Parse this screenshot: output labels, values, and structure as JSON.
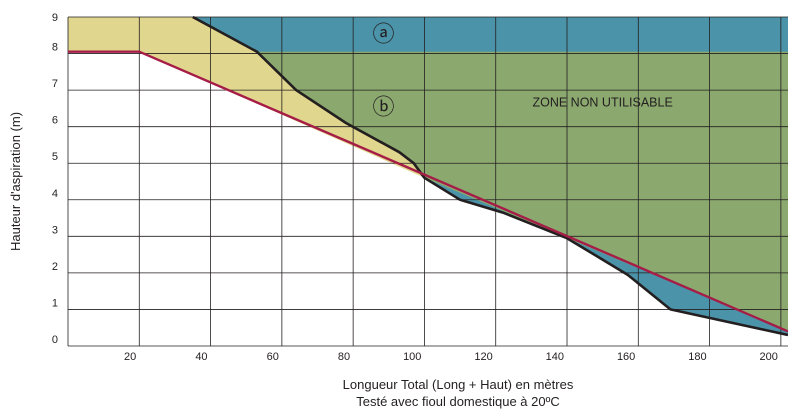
{
  "chart_data": {
    "type": "area",
    "xlabel": "Longueur Total (Long + Haut) en mètres",
    "xlabel_line2": "Testé avec fioul domestique à 20ºC",
    "ylabel": "Hauteur d'aspiration (m)",
    "xlim": [
      0,
      202
    ],
    "ylim": [
      0,
      9
    ],
    "x_ticks": [
      20,
      40,
      60,
      80,
      100,
      120,
      140,
      160,
      180,
      200
    ],
    "y_ticks": [
      0,
      1,
      2,
      3,
      4,
      5,
      6,
      7,
      8,
      9
    ],
    "grid": true,
    "zone_label": "ZONE NON UTILISABLE",
    "annotations": [
      "ⓐ",
      "ⓑ"
    ],
    "series": [
      {
        "x": [
          35,
          53,
          64,
          78,
          93,
          97,
          100,
          110,
          122,
          140,
          157,
          169,
          202
        ],
        "y": [
          9,
          8.05,
          7,
          6.1,
          5.3,
          5.0,
          4.6,
          4.0,
          3.65,
          2.95,
          1.95,
          1.0,
          0.3
        ]
      },
      {
        "x": [
          0,
          20,
          202
        ],
        "y": [
          8.05,
          8.05,
          0.4
        ]
      }
    ],
    "colors": {
      "zone_a_fill": "#4b93a9",
      "zone_b_fill": "#8ba86f",
      "usable_extension_fill": "#e1d68e",
      "upper_curve": "#231f20",
      "lower_line": "#a51d47",
      "grid": "#231f20"
    }
  }
}
